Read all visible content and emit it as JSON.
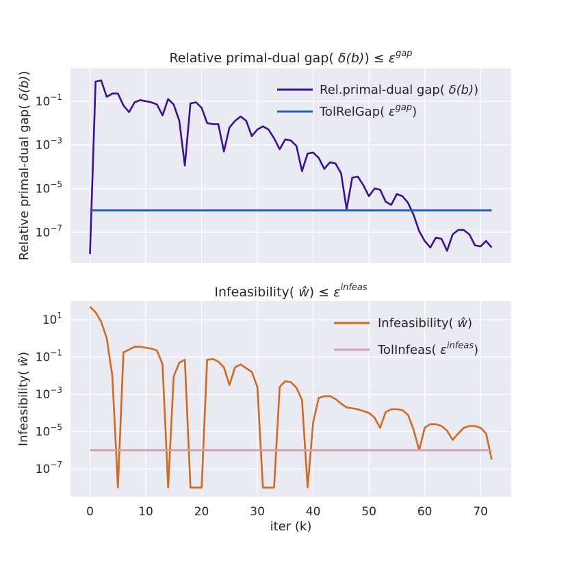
{
  "chart_data": [
    {
      "type": "line",
      "title": "Relative primal-dual gap( δ(b))  ≤ ε^gap",
      "title_parts": {
        "main": "Relative primal-dual gap( ",
        "sym": "δ(b)",
        "close": ")  ≤ ",
        "eps": "ε",
        "sup": "gap"
      },
      "xlabel": "",
      "ylabel": "Relative primal-dual gap( δ(b))",
      "ylabel_parts": {
        "main": "Relative primal-dual gap( ",
        "sym": "δ(b)",
        "close": ")"
      },
      "yscale": "log",
      "xlim": [
        -3.5,
        75.5
      ],
      "ylim_log10": [
        -8.4,
        0.5
      ],
      "xticks": [
        0,
        10,
        20,
        30,
        40,
        50,
        60,
        70
      ],
      "yticks_log10": [
        -7,
        -5,
        -3,
        -1
      ],
      "ytick_labels": [
        {
          "base": "10",
          "exp": "−7"
        },
        {
          "base": "10",
          "exp": "−5"
        },
        {
          "base": "10",
          "exp": "−3"
        },
        {
          "base": "10",
          "exp": "−1"
        }
      ],
      "legend_position": "top-right",
      "series": [
        {
          "name": "Rel.primal-dual gap( δ(b))",
          "legend_parts": {
            "main": "Rel.primal-dual gap( ",
            "sym": "δ(b)",
            "close": ")"
          },
          "color": "#3b0f9c",
          "x": [
            0,
            1,
            2,
            3,
            4,
            5,
            6,
            7,
            8,
            9,
            10,
            11,
            12,
            13,
            14,
            15,
            16,
            17,
            18,
            19,
            20,
            21,
            22,
            23,
            24,
            25,
            26,
            27,
            28,
            29,
            30,
            31,
            32,
            33,
            34,
            35,
            36,
            37,
            38,
            39,
            40,
            41,
            42,
            43,
            44,
            45,
            46,
            47,
            48,
            49,
            50,
            51,
            52,
            53,
            54,
            55,
            56,
            57,
            58,
            59,
            60,
            61,
            62,
            63,
            64,
            65,
            66,
            67,
            68,
            69,
            70,
            71,
            72
          ],
          "log10_y": [
            -8.0,
            -0.1,
            -0.05,
            -0.8,
            -0.65,
            -0.65,
            -1.2,
            -1.5,
            -1.05,
            -0.95,
            -1.0,
            -1.05,
            -1.15,
            -1.65,
            -0.9,
            -1.15,
            -1.9,
            -3.95,
            -1.1,
            -1.05,
            -1.3,
            -2.0,
            -2.05,
            -2.05,
            -3.3,
            -2.2,
            -1.9,
            -1.7,
            -1.9,
            -2.6,
            -2.3,
            -2.15,
            -2.3,
            -2.7,
            -3.2,
            -2.75,
            -2.8,
            -3.05,
            -4.2,
            -3.4,
            -3.35,
            -3.6,
            -4.1,
            -3.8,
            -3.85,
            -4.3,
            -5.95,
            -4.5,
            -4.45,
            -4.85,
            -5.35,
            -5.0,
            -5.05,
            -5.6,
            -5.75,
            -5.25,
            -5.35,
            -5.65,
            -6.2,
            -6.95,
            -7.4,
            -7.7,
            -7.25,
            -7.3,
            -7.85,
            -7.1,
            -6.9,
            -6.9,
            -7.1,
            -7.6,
            -7.65,
            -7.4,
            -7.7
          ]
        },
        {
          "name": "TolRelGap( ε^gap)",
          "legend_parts": {
            "main": "TolRelGap( ",
            "eps": "ε",
            "sup": "gap",
            "close": ")"
          },
          "color": "#1f5fbf",
          "x": [
            0,
            72
          ],
          "log10_y": [
            -6.0,
            -6.0
          ]
        }
      ]
    },
    {
      "type": "line",
      "title": "Infeasibility( ŵ)  ≤ ε^infeas",
      "title_parts": {
        "main": "Infeasibility( ",
        "sym": "ŵ",
        "close": ")  ≤ ",
        "eps": "ε",
        "sup": "infeas"
      },
      "xlabel": "iter (k)",
      "ylabel": "Infeasibility( ŵ)",
      "ylabel_parts": {
        "main": "Infeasibility( ",
        "sym": "ŵ",
        "close": ")"
      },
      "yscale": "log",
      "xlim": [
        -3.5,
        75.5
      ],
      "ylim_log10": [
        -8.5,
        2.0
      ],
      "xticks": [
        0,
        10,
        20,
        30,
        40,
        50,
        60,
        70
      ],
      "xtick_labels": [
        "0",
        "10",
        "20",
        "30",
        "40",
        "50",
        "60",
        "70"
      ],
      "yticks_log10": [
        -7,
        -5,
        -3,
        -1,
        1
      ],
      "ytick_labels": [
        {
          "base": "10",
          "exp": "−7"
        },
        {
          "base": "10",
          "exp": "−5"
        },
        {
          "base": "10",
          "exp": "−3"
        },
        {
          "base": "10",
          "exp": "−1"
        },
        {
          "base": "10",
          "exp": "1"
        }
      ],
      "legend_position": "top-right",
      "series": [
        {
          "name": "Infeasibility( ŵ)",
          "legend_parts": {
            "main": "Infeasibility( ",
            "sym": "ŵ",
            "close": ")"
          },
          "color": "#d2691e",
          "x": [
            0,
            1,
            2,
            3,
            4,
            5,
            6,
            7,
            8,
            9,
            10,
            11,
            12,
            13,
            14,
            15,
            16,
            17,
            18,
            19,
            20,
            21,
            22,
            23,
            24,
            25,
            26,
            27,
            28,
            29,
            30,
            31,
            32,
            33,
            34,
            35,
            36,
            37,
            38,
            39,
            40,
            41,
            42,
            43,
            44,
            45,
            46,
            47,
            48,
            49,
            50,
            51,
            52,
            53,
            54,
            55,
            56,
            57,
            58,
            59,
            60,
            61,
            62,
            63,
            64,
            65,
            66,
            67,
            68,
            69,
            70,
            71,
            72
          ],
          "log10_y": [
            1.7,
            1.4,
            0.9,
            0.0,
            -2.0,
            -8.0,
            -0.75,
            -0.6,
            -0.45,
            -0.45,
            -0.5,
            -0.55,
            -0.65,
            -1.4,
            -8.0,
            -2.05,
            -1.3,
            -1.15,
            -8.0,
            -8.0,
            -8.0,
            -1.15,
            -1.1,
            -1.25,
            -1.55,
            -2.5,
            -1.55,
            -1.4,
            -1.6,
            -1.8,
            -2.6,
            -8.0,
            -8.0,
            -8.0,
            -2.6,
            -2.3,
            -2.35,
            -2.65,
            -3.3,
            -8.0,
            -4.5,
            -3.2,
            -3.1,
            -3.1,
            -3.25,
            -3.5,
            -3.7,
            -3.75,
            -3.8,
            -3.9,
            -4.0,
            -4.25,
            -4.8,
            -3.95,
            -3.8,
            -3.8,
            -3.85,
            -4.1,
            -4.9,
            -6.0,
            -4.8,
            -4.6,
            -4.6,
            -4.7,
            -4.95,
            -5.45,
            -5.1,
            -4.8,
            -4.7,
            -4.7,
            -4.8,
            -5.1,
            -6.5
          ]
        },
        {
          "name": "TolInfeas( ε^infeas)",
          "legend_parts": {
            "main": "TolInfeas( ",
            "eps": "ε",
            "sup": "infeas",
            "close": ")"
          },
          "color": "#d4a0a8",
          "x": [
            0,
            72
          ],
          "log10_y": [
            -6.0,
            -6.0
          ]
        }
      ]
    }
  ]
}
